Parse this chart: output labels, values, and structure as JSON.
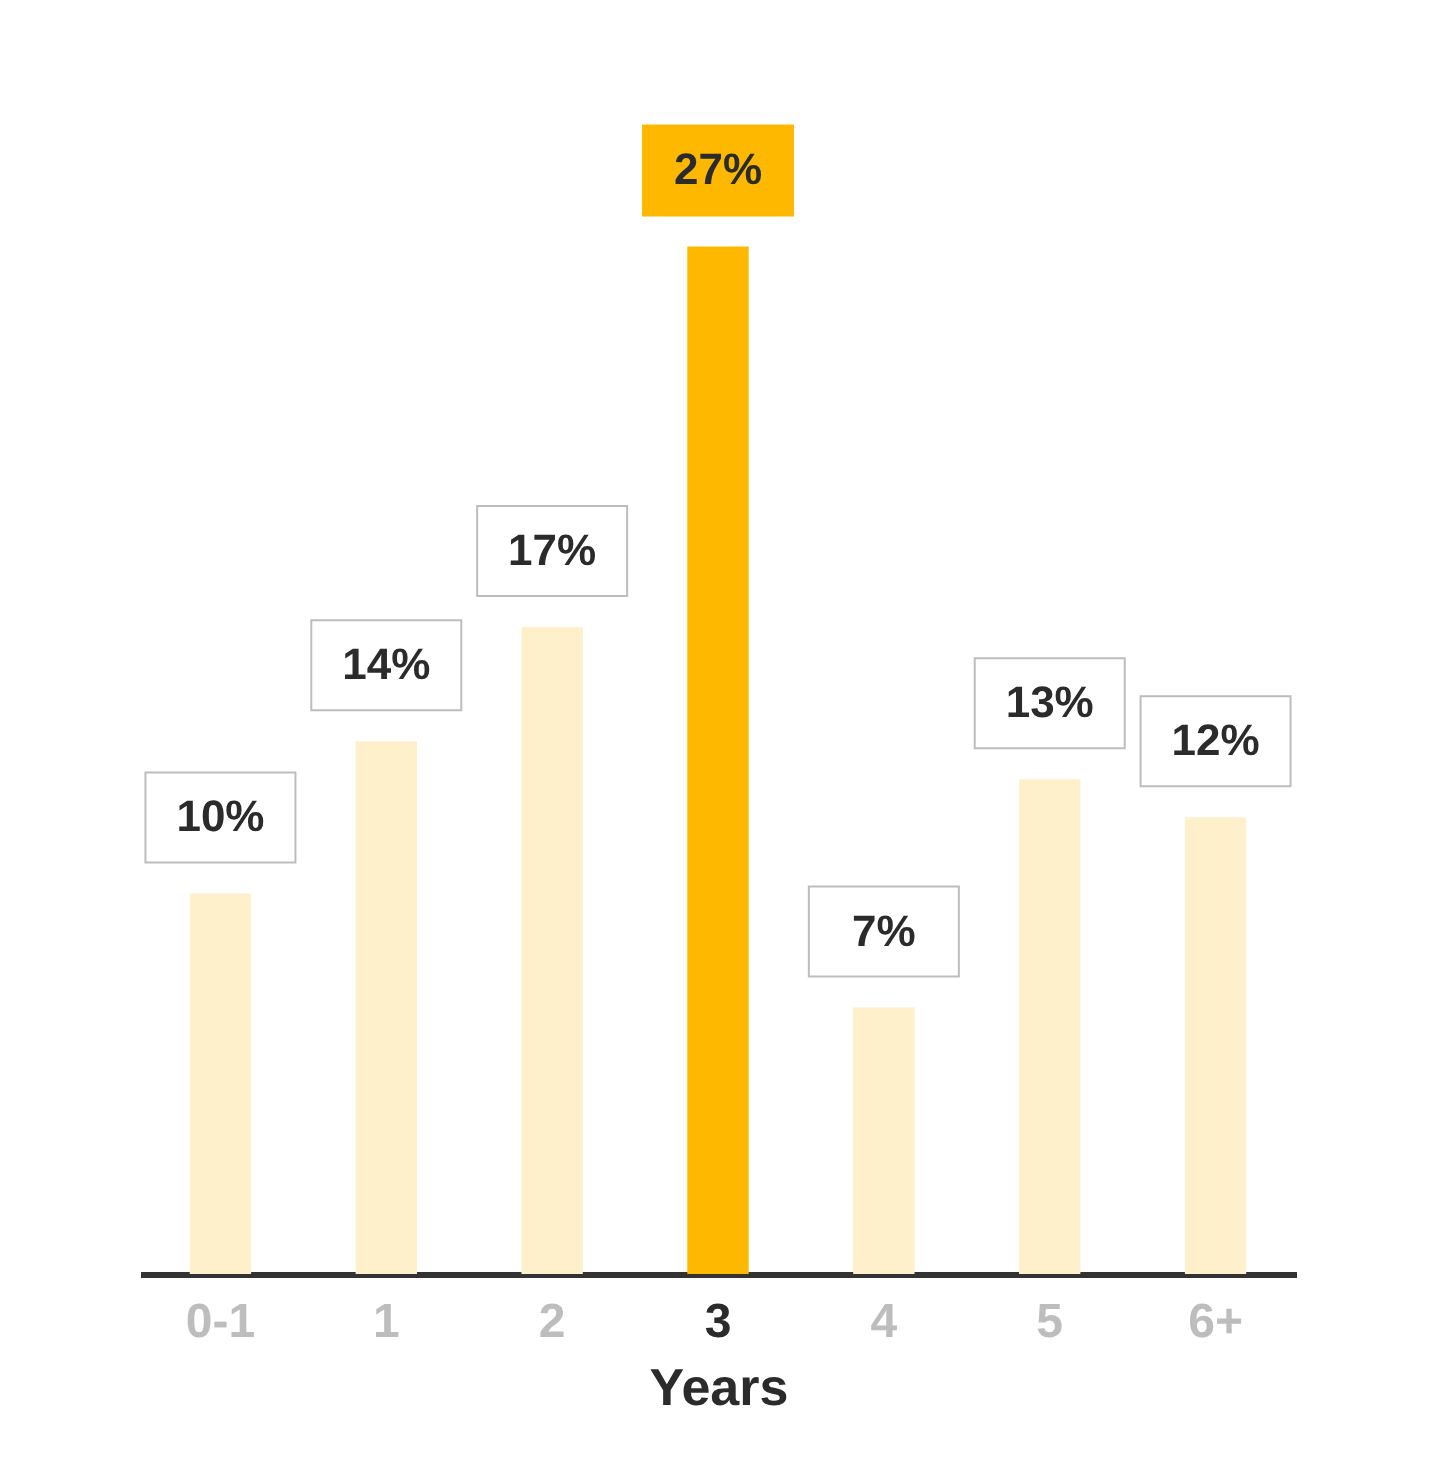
{
  "chart_data": {
    "type": "bar",
    "xlabel": "Years",
    "categories": [
      "0-1",
      "1",
      "2",
      "3",
      "4",
      "5",
      "6+"
    ],
    "values": [
      10,
      14,
      17,
      27,
      7,
      13,
      12
    ],
    "colors": [
      "#fff0cc",
      "#fff0cc",
      "#fff0cc",
      "#ffb800",
      "#fff0cc",
      "#fff0cc",
      "#fff0cc"
    ],
    "value_labels": [
      "10%",
      "14%",
      "17%",
      "27%",
      "7%",
      "13%",
      "12%"
    ],
    "grid": false
  }
}
